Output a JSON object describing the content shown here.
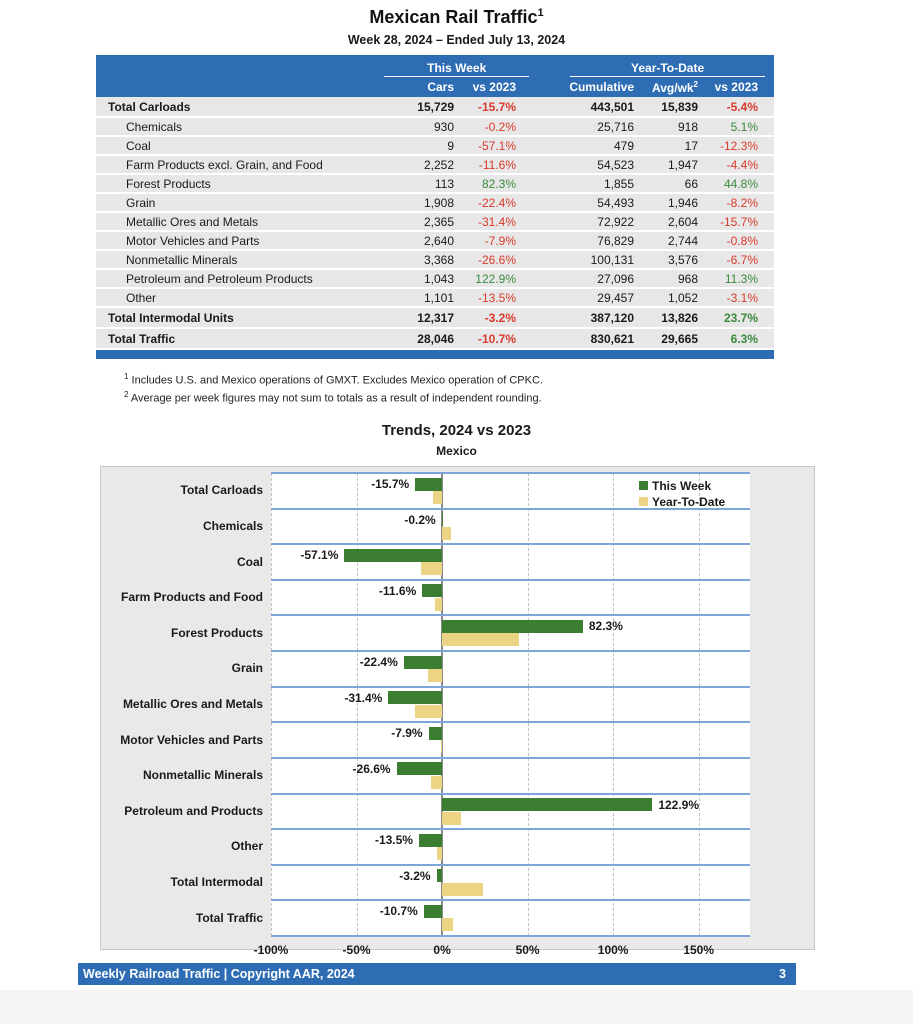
{
  "page": {
    "title": "Mexican Rail Traffic",
    "title_superscript": "1",
    "subtitle": "Week 28, 2024 – Ended July 13, 2024"
  },
  "table": {
    "group_headers": {
      "this_week": "This Week",
      "ytd": "Year-To-Date"
    },
    "columns": {
      "cars": "Cars",
      "cars_vs": "vs 2023",
      "cumulative": "Cumulative",
      "avg_wk": "Avg/wk",
      "avg_wk_sup": "2",
      "ytd_vs": "vs 2023"
    },
    "rows": [
      {
        "label": "Total Carloads",
        "total": true,
        "cars": "15,729",
        "cars_vs": "-15.7%",
        "cumulative": "443,501",
        "avg_wk": "15,839",
        "ytd_vs": "-5.4%"
      },
      {
        "label": "Chemicals",
        "total": false,
        "cars": "930",
        "cars_vs": "-0.2%",
        "cumulative": "25,716",
        "avg_wk": "918",
        "ytd_vs": "5.1%"
      },
      {
        "label": "Coal",
        "total": false,
        "cars": "9",
        "cars_vs": "-57.1%",
        "cumulative": "479",
        "avg_wk": "17",
        "ytd_vs": "-12.3%"
      },
      {
        "label": "Farm Products excl. Grain, and Food",
        "total": false,
        "cars": "2,252",
        "cars_vs": "-11.6%",
        "cumulative": "54,523",
        "avg_wk": "1,947",
        "ytd_vs": "-4.4%"
      },
      {
        "label": "Forest Products",
        "total": false,
        "cars": "113",
        "cars_vs": "82.3%",
        "cumulative": "1,855",
        "avg_wk": "66",
        "ytd_vs": "44.8%"
      },
      {
        "label": "Grain",
        "total": false,
        "cars": "1,908",
        "cars_vs": "-22.4%",
        "cumulative": "54,493",
        "avg_wk": "1,946",
        "ytd_vs": "-8.2%"
      },
      {
        "label": "Metallic Ores and Metals",
        "total": false,
        "cars": "2,365",
        "cars_vs": "-31.4%",
        "cumulative": "72,922",
        "avg_wk": "2,604",
        "ytd_vs": "-15.7%"
      },
      {
        "label": "Motor Vehicles and Parts",
        "total": false,
        "cars": "2,640",
        "cars_vs": "-7.9%",
        "cumulative": "76,829",
        "avg_wk": "2,744",
        "ytd_vs": "-0.8%"
      },
      {
        "label": "Nonmetallic Minerals",
        "total": false,
        "cars": "3,368",
        "cars_vs": "-26.6%",
        "cumulative": "100,131",
        "avg_wk": "3,576",
        "ytd_vs": "-6.7%"
      },
      {
        "label": "Petroleum and Petroleum Products",
        "total": false,
        "cars": "1,043",
        "cars_vs": "122.9%",
        "cumulative": "27,096",
        "avg_wk": "968",
        "ytd_vs": "11.3%"
      },
      {
        "label": "Other",
        "total": false,
        "cars": "1,101",
        "cars_vs": "-13.5%",
        "cumulative": "29,457",
        "avg_wk": "1,052",
        "ytd_vs": "-3.1%"
      },
      {
        "label": "Total Intermodal Units",
        "total": true,
        "cars": "12,317",
        "cars_vs": "-3.2%",
        "cumulative": "387,120",
        "avg_wk": "13,826",
        "ytd_vs": "23.7%"
      },
      {
        "label": "Total Traffic",
        "total": true,
        "cars": "28,046",
        "cars_vs": "-10.7%",
        "cumulative": "830,621",
        "avg_wk": "29,665",
        "ytd_vs": "6.3%"
      }
    ]
  },
  "footnotes": [
    {
      "sup": "1",
      "text": "Includes U.S. and Mexico operations of GMXT. Excludes Mexico operation of CPKC."
    },
    {
      "sup": "2",
      "text": "Average per week figures may not sum to totals as a result of independent rounding."
    }
  ],
  "chart_data": {
    "type": "bar",
    "orientation": "horizontal",
    "title": "Trends, 2024 vs 2023",
    "subtitle": "Mexico",
    "categories": [
      "Total Carloads",
      "Chemicals",
      "Coal",
      "Farm Products and Food",
      "Forest Products",
      "Grain",
      "Metallic Ores and Metals",
      "Motor Vehicles and Parts",
      "Nonmetallic Minerals",
      "Petroleum and Products",
      "Other",
      "Total Intermodal",
      "Total Traffic"
    ],
    "series": [
      {
        "name": "This Week",
        "color": "#3B7D31",
        "values": [
          -15.7,
          -0.2,
          -57.1,
          -11.6,
          82.3,
          -22.4,
          -31.4,
          -7.9,
          -26.6,
          122.9,
          -13.5,
          -3.2,
          -10.7
        ]
      },
      {
        "name": "Year-To-Date",
        "color": "#EBD584",
        "values": [
          -5.4,
          5.1,
          -12.3,
          -4.4,
          44.8,
          -8.2,
          -15.7,
          -0.8,
          -6.7,
          11.3,
          -3.1,
          23.7,
          6.3
        ]
      }
    ],
    "bar_labels": [
      "-15.7%",
      "-0.2%",
      "-57.1%",
      "-11.6%",
      "82.3%",
      "-22.4%",
      "-31.4%",
      "-7.9%",
      "-26.6%",
      "122.9%",
      "-13.5%",
      "-3.2%",
      "-10.7%"
    ],
    "x_ticks": [
      "-100%",
      "-50%",
      "0%",
      "50%",
      "100%",
      "150%"
    ],
    "x_tick_values": [
      -100,
      -50,
      0,
      50,
      100,
      150
    ],
    "xlim": [
      -100,
      180
    ],
    "xlabel": "",
    "ylabel": "",
    "legend_position": "top-right",
    "gridlines": "vertical-dashed"
  },
  "footer": {
    "left_text": "Weekly Railroad Traffic | Copyright AAR, 2024",
    "page_number": "3"
  },
  "colors": {
    "header_blue": "#2E6DB4",
    "row_gray": "#E7E7E7",
    "negative_red": "#D93A2B",
    "positive_green": "#3A8A3D",
    "bar_green": "#3B7D31",
    "bar_tan": "#EBD584",
    "band_line_blue": "#7CA6D8",
    "chart_background": "#E9E9E9"
  }
}
